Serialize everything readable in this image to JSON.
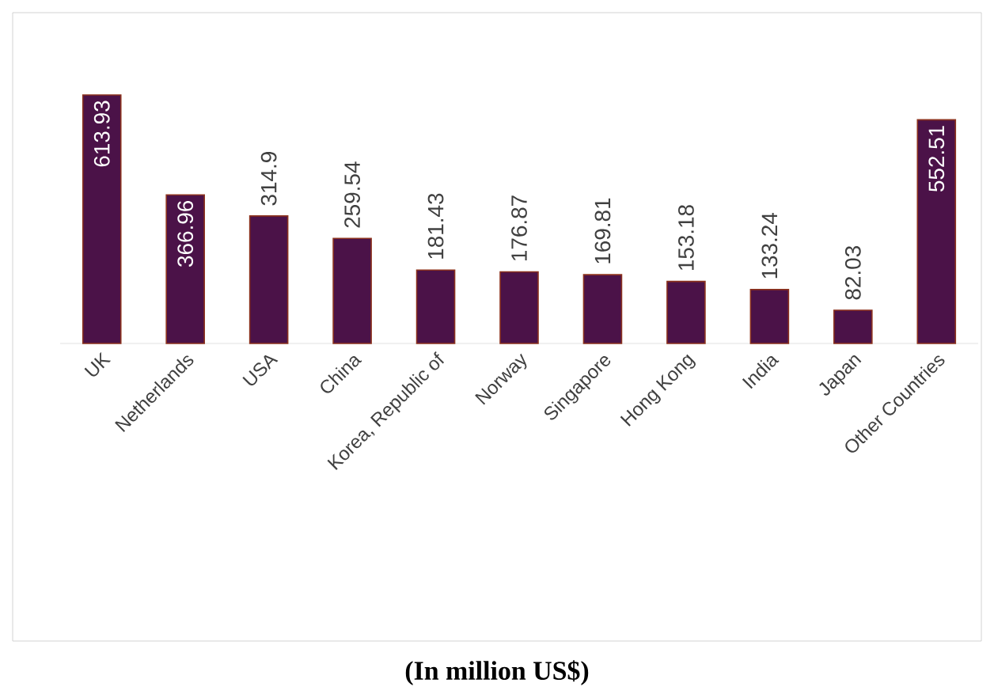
{
  "chart_data": {
    "type": "bar",
    "categories": [
      "UK",
      "Netherlands",
      "USA",
      "China",
      "Korea, Republic of",
      "Norway",
      "Singapore",
      "Hong Kong",
      "India",
      "Japan",
      "Other Countries"
    ],
    "values": [
      613.93,
      366.96,
      314.9,
      259.54,
      181.43,
      176.87,
      169.81,
      153.18,
      133.24,
      82.03,
      552.51
    ],
    "color": "#4b1248",
    "data_labels": true,
    "annotations": [
      "(In million US$)"
    ]
  }
}
